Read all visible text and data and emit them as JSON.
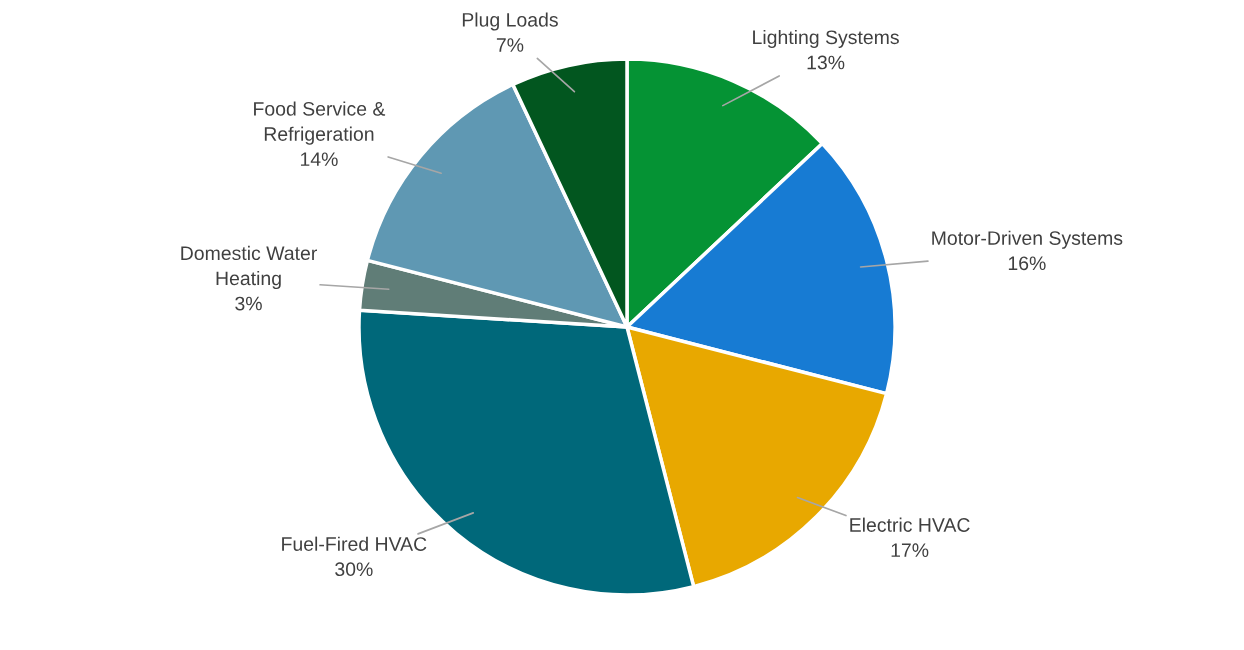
{
  "chart_data": {
    "type": "pie",
    "categories": [
      "Lighting Systems",
      "Motor-Driven Systems",
      "Electric HVAC",
      "Fuel-Fired HVAC",
      "Domestic Water\nHeating",
      "Food Service &\nRefrigeration",
      "Plug Loads"
    ],
    "values": [
      13,
      16,
      17,
      30,
      3,
      14,
      7
    ],
    "value_labels": [
      "13%",
      "16%",
      "17%",
      "30%",
      "3%",
      "14%",
      "7%"
    ],
    "colors": [
      "#059334",
      "#177bd3",
      "#e8a800",
      "#00687a",
      "#607d77",
      "#5f98b3",
      "#02561f"
    ]
  }
}
